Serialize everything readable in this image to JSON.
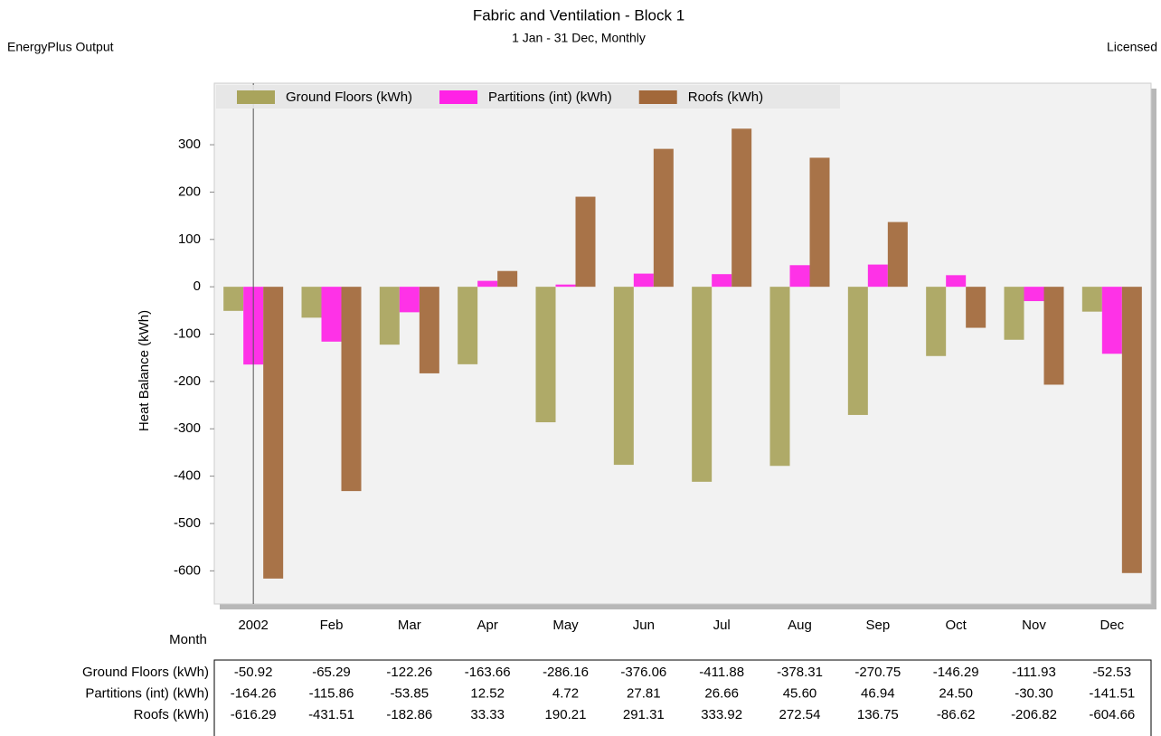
{
  "chart_data": {
    "type": "bar",
    "title": "Fabric and Ventilation - Block 1",
    "subtitle": "1 Jan - 31 Dec, Monthly",
    "header_left": "EnergyPlus Output",
    "header_right": "Licensed",
    "y_label": "Heat Balance (kWh)",
    "x_label": "Month",
    "categories": [
      "2002",
      "Feb",
      "Mar",
      "Apr",
      "May",
      "Jun",
      "Jul",
      "Aug",
      "Sep",
      "Oct",
      "Nov",
      "Dec"
    ],
    "series": [
      {
        "name": "Ground Floors (kWh)",
        "color": "#a9a45c",
        "values": [
          -50.92,
          -65.29,
          -122.26,
          -163.66,
          -286.16,
          -376.06,
          -411.88,
          -378.31,
          -270.75,
          -146.29,
          -111.93,
          -52.53
        ],
        "value_labels": [
          "-50.92",
          "-65.29",
          "-122.26",
          "-163.66",
          "-286.16",
          "-376.06",
          "-411.88",
          "-378.31",
          "-270.75",
          "-146.29",
          "-111.93",
          "-52.53"
        ]
      },
      {
        "name": "Partitions (int) (kWh)",
        "color": "#ff22e6",
        "values": [
          -164.26,
          -115.86,
          -53.85,
          12.52,
          4.72,
          27.81,
          26.66,
          45.6,
          46.94,
          24.5,
          -30.3,
          -141.51
        ],
        "value_labels": [
          "-164.26",
          "-115.86",
          "-53.85",
          "12.52",
          "4.72",
          "27.81",
          "26.66",
          "45.60",
          "46.94",
          "24.50",
          "-30.30",
          "-141.51"
        ]
      },
      {
        "name": "Roofs (kWh)",
        "color": "#a2683a",
        "values": [
          -616.29,
          -431.51,
          -182.86,
          33.33,
          190.21,
          291.31,
          333.92,
          272.54,
          136.75,
          -86.62,
          -206.82,
          -604.66
        ],
        "value_labels": [
          "-616.29",
          "-431.51",
          "-182.86",
          "33.33",
          "190.21",
          "291.31",
          "333.92",
          "272.54",
          "136.75",
          "-86.62",
          "-206.82",
          "-604.66"
        ]
      }
    ],
    "ylim": [
      -670,
      430
    ],
    "yticks": [
      -600,
      -500,
      -400,
      -300,
      -200,
      -100,
      0,
      100,
      200,
      300
    ],
    "legend": "top"
  }
}
